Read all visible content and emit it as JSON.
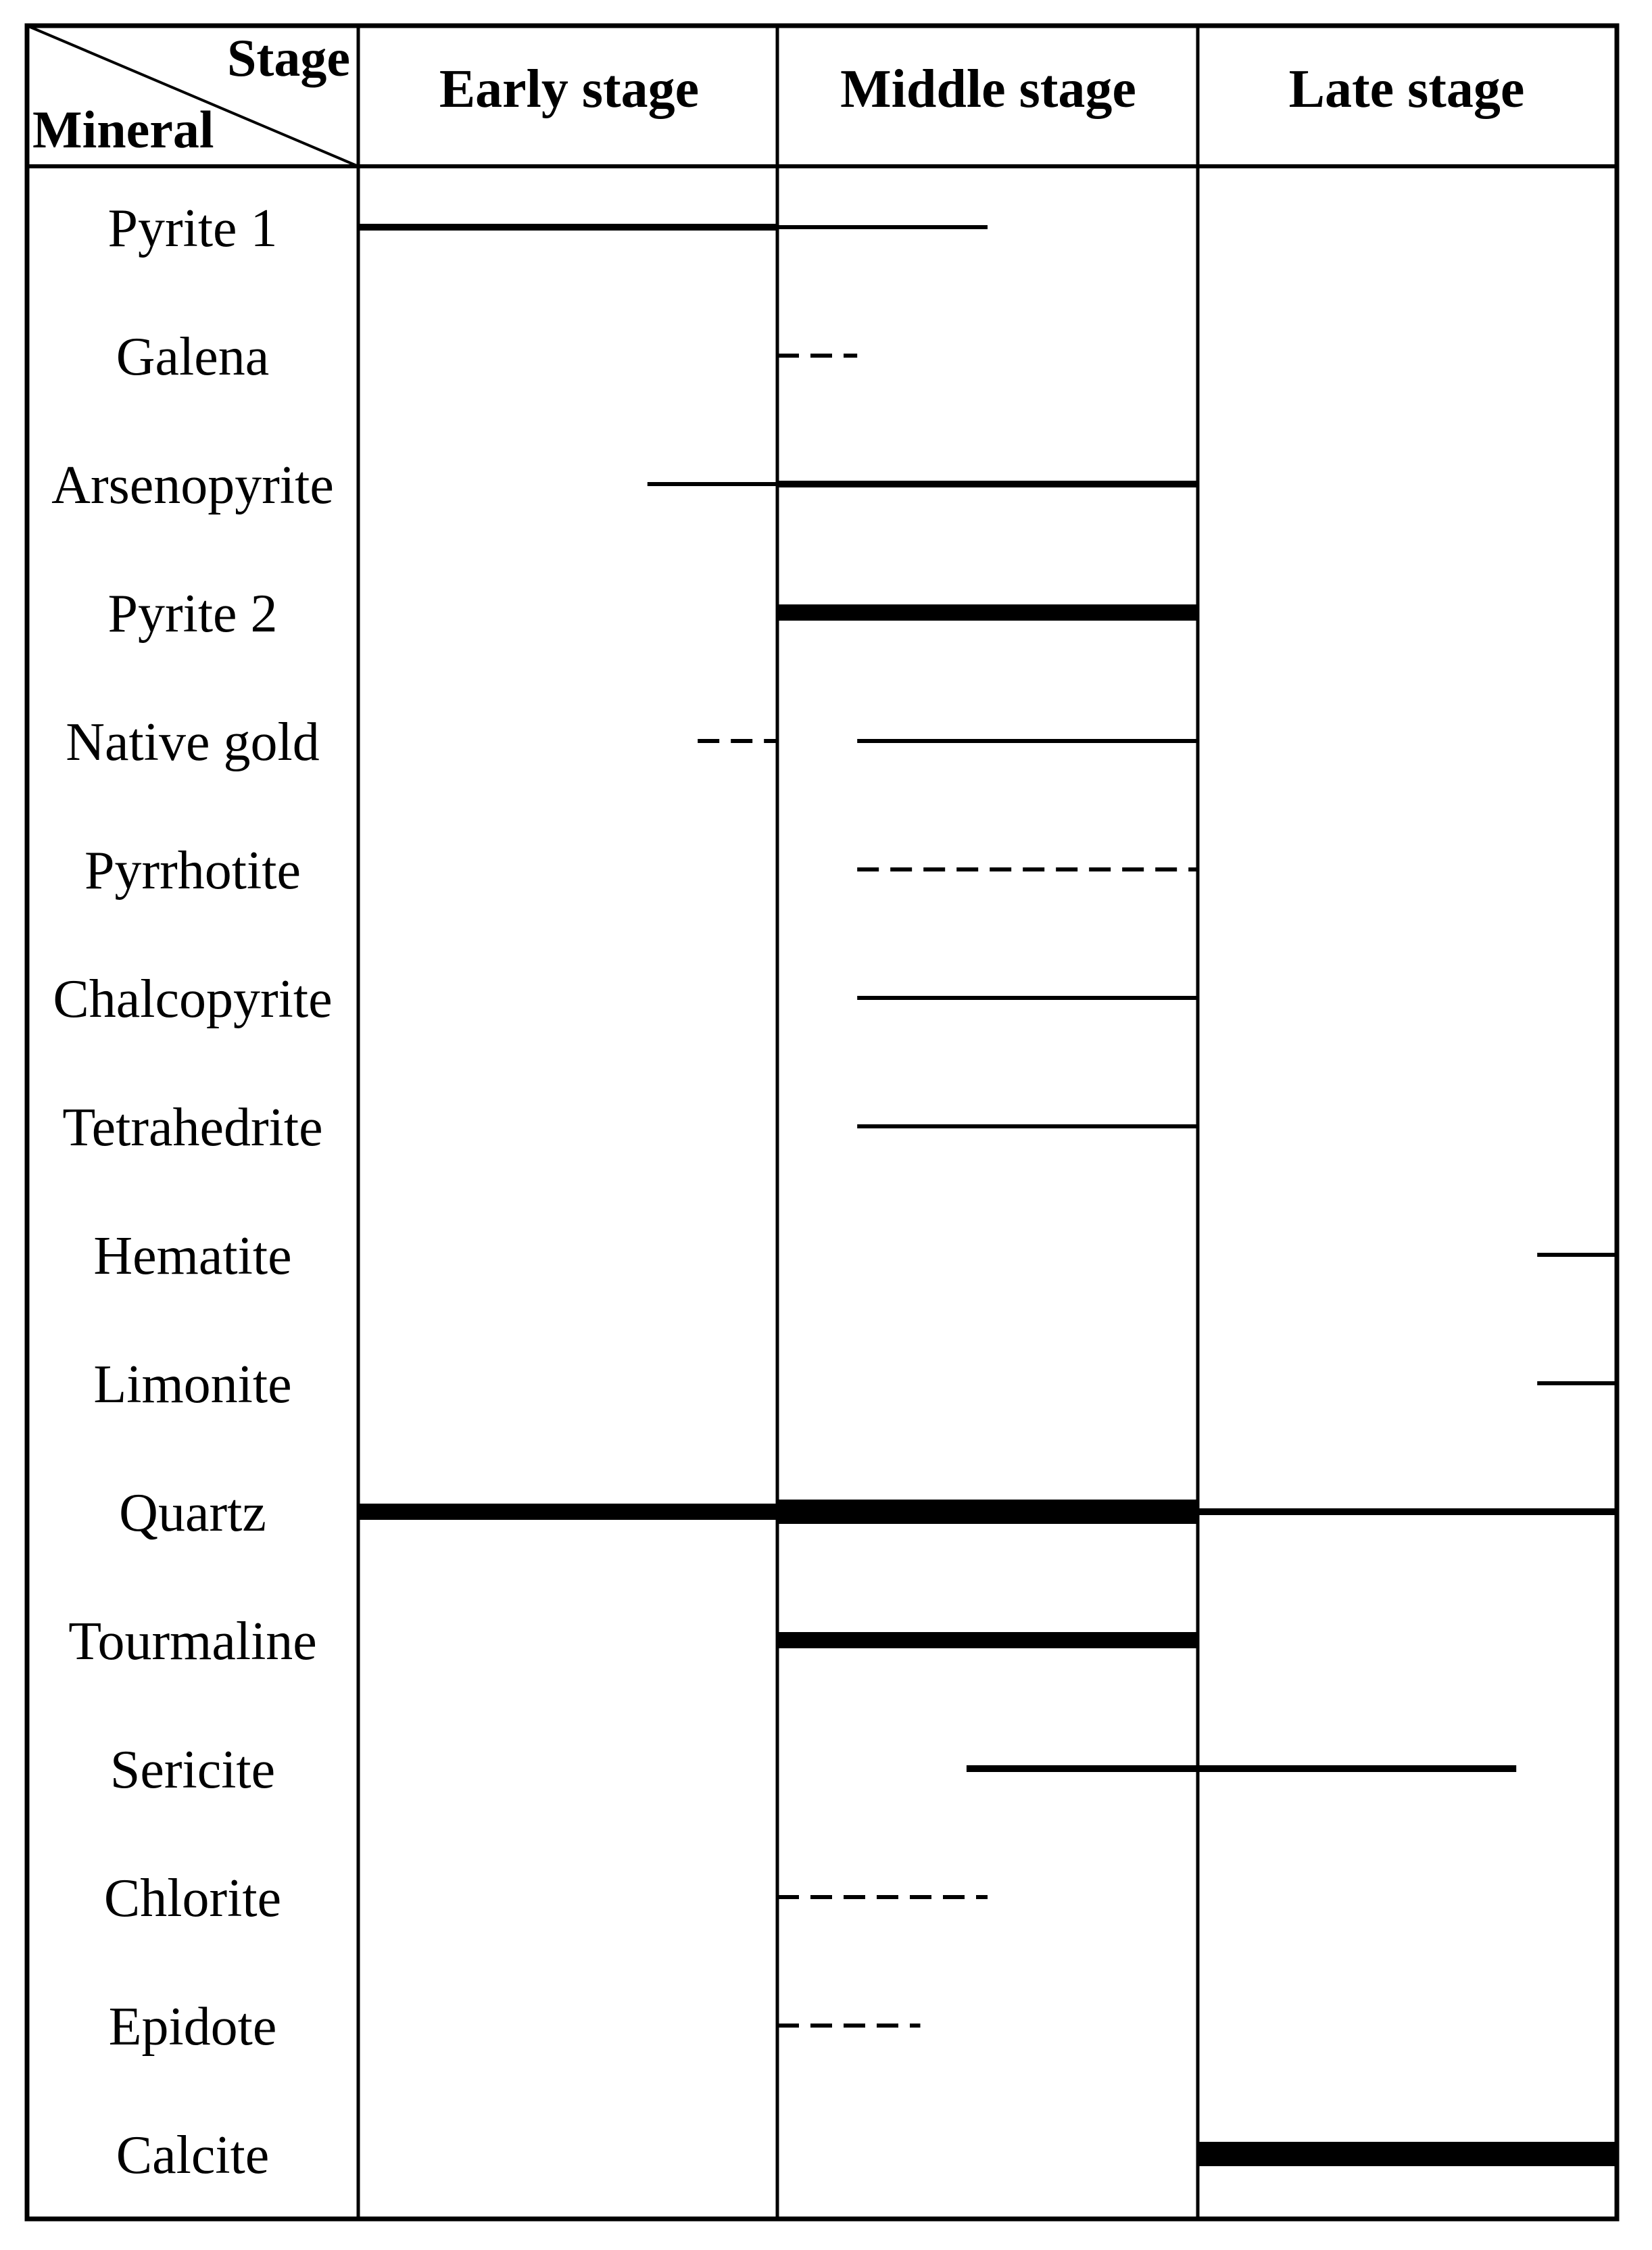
{
  "header": {
    "corner_top": "Stage",
    "corner_bottom": "Mineral",
    "stages": [
      "Early stage",
      "Middle stage",
      "Late stage"
    ]
  },
  "minerals": [
    "Pyrite 1",
    "Galena",
    "Arsenopyrite",
    "Pyrite 2",
    "Native gold",
    "Pyrrhotite",
    "Chalcopyrite",
    "Tetrahedrite",
    "Hematite",
    "Limonite",
    "Quartz",
    "Tourmaline",
    "Sericite",
    "Chlorite",
    "Epidote",
    "Calcite"
  ],
  "chart_data": {
    "type": "paragenetic-sequence",
    "x_axis": {
      "categories": [
        "Early stage",
        "Middle stage",
        "Late stage"
      ],
      "range": [
        0,
        3
      ],
      "note": "stage spans: Early 0–1, Middle 1–2, Late 2–3"
    },
    "line_styles": [
      "dashed",
      "thin",
      "medium",
      "thick",
      "very-thick"
    ],
    "bars": [
      {
        "mineral": "Pyrite 1",
        "segments": [
          {
            "start": 0.0,
            "end": 1.0,
            "style": "medium"
          },
          {
            "start": 1.0,
            "end": 1.5,
            "style": "thin"
          }
        ]
      },
      {
        "mineral": "Galena",
        "segments": [
          {
            "start": 1.0,
            "end": 1.19,
            "style": "dashed"
          }
        ]
      },
      {
        "mineral": "Arsenopyrite",
        "segments": [
          {
            "start": 0.69,
            "end": 1.0,
            "style": "thin"
          },
          {
            "start": 1.0,
            "end": 2.0,
            "style": "medium"
          }
        ]
      },
      {
        "mineral": "Pyrite 2",
        "segments": [
          {
            "start": 1.0,
            "end": 2.0,
            "style": "thick"
          }
        ]
      },
      {
        "mineral": "Native gold",
        "segments": [
          {
            "start": 0.81,
            "end": 1.0,
            "style": "dashed"
          },
          {
            "start": 1.19,
            "end": 2.0,
            "style": "thin"
          }
        ]
      },
      {
        "mineral": "Pyrrhotite",
        "segments": [
          {
            "start": 1.19,
            "end": 2.0,
            "style": "dashed"
          }
        ]
      },
      {
        "mineral": "Chalcopyrite",
        "segments": [
          {
            "start": 1.19,
            "end": 2.0,
            "style": "thin"
          }
        ]
      },
      {
        "mineral": "Tetrahedrite",
        "segments": [
          {
            "start": 1.19,
            "end": 2.0,
            "style": "thin"
          }
        ]
      },
      {
        "mineral": "Hematite",
        "segments": [
          {
            "start": 2.81,
            "end": 3.0,
            "style": "thin"
          }
        ]
      },
      {
        "mineral": "Limonite",
        "segments": [
          {
            "start": 2.81,
            "end": 3.0,
            "style": "thin"
          }
        ]
      },
      {
        "mineral": "Quartz",
        "segments": [
          {
            "start": 0.0,
            "end": 1.0,
            "style": "thick"
          },
          {
            "start": 1.0,
            "end": 2.0,
            "style": "very-thick"
          },
          {
            "start": 2.0,
            "end": 3.0,
            "style": "medium"
          }
        ]
      },
      {
        "mineral": "Tourmaline",
        "segments": [
          {
            "start": 1.0,
            "end": 2.0,
            "style": "thick"
          }
        ]
      },
      {
        "mineral": "Sericite",
        "segments": [
          {
            "start": 1.45,
            "end": 2.76,
            "style": "medium"
          }
        ]
      },
      {
        "mineral": "Chlorite",
        "segments": [
          {
            "start": 1.0,
            "end": 1.5,
            "style": "dashed"
          }
        ]
      },
      {
        "mineral": "Epidote",
        "segments": [
          {
            "start": 1.0,
            "end": 1.34,
            "style": "dashed"
          }
        ]
      },
      {
        "mineral": "Calcite",
        "segments": [
          {
            "start": 2.0,
            "end": 3.0,
            "style": "very-thick"
          }
        ]
      }
    ]
  }
}
